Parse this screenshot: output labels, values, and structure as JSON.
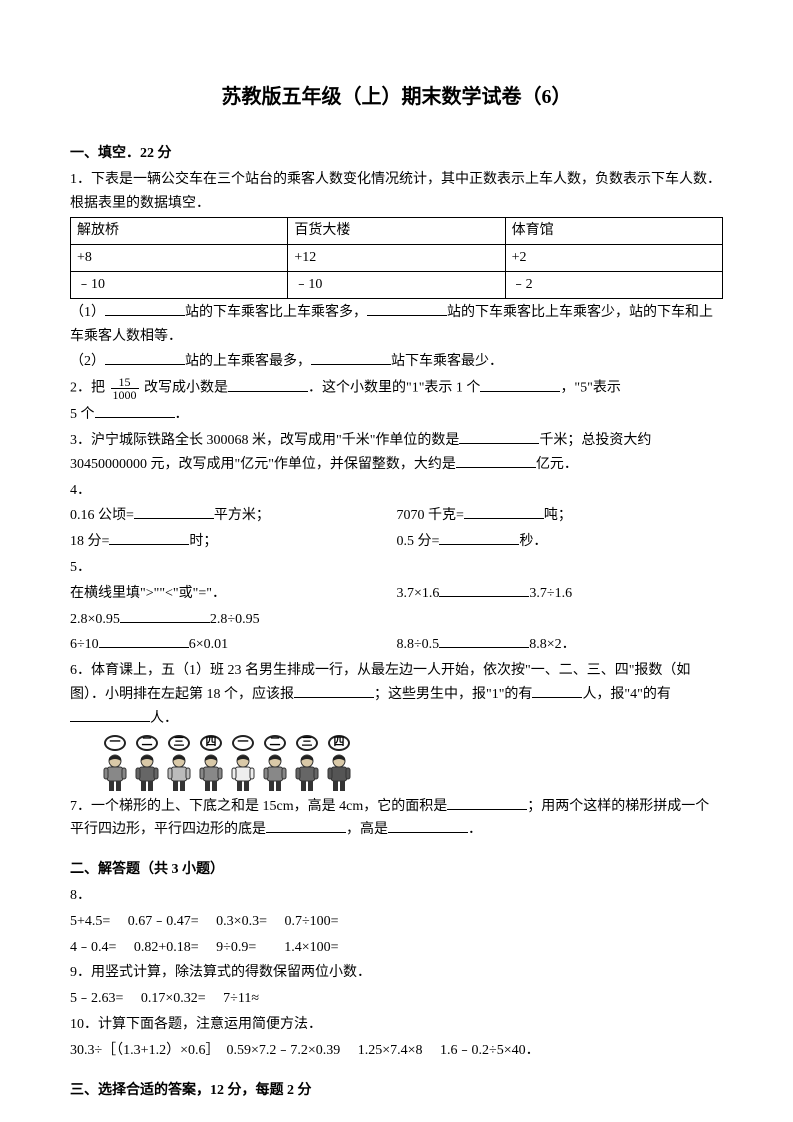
{
  "title": "苏教版五年级（上）期末数学试卷（6）",
  "sec1": {
    "head": "一、填空．22 分",
    "q1": {
      "intro": "1．下表是一辆公交车在三个站台的乘客人数变化情况统计，其中正数表示上车人数，负数表示下车人数．根据表里的数据填空．",
      "table": {
        "r0": {
          "c0": "解放桥",
          "c1": "百货大楼",
          "c2": "体育馆"
        },
        "r1": {
          "c0": "+8",
          "c1": "+12",
          "c2": "+2"
        },
        "r2": {
          "c0": "﹣10",
          "c1": "﹣10",
          "c2": "﹣2"
        }
      },
      "p1a": "（1）",
      "p1b": "站的下车乘客比上车乘客多，",
      "p1c": "站的下车乘客比上车乘客少，",
      "p1d": "站的下车和上车乘客人数相等．",
      "p2a": "（2）",
      "p2b": "站的上车乘客最多，",
      "p2c": "站下车乘客最少．"
    },
    "q2": {
      "a": "2．把",
      "frac_num": "15",
      "frac_den": "1000",
      "b": "改写成小数是",
      "c": "．这个小数里的\"1\"表示 1 个",
      "d": "，\"5\"表示",
      "e": "5 个",
      "f": "．"
    },
    "q3": {
      "a": "3．沪宁城际铁路全长 300068 米，改写成用\"千米\"作单位的数是",
      "b": "千米；总投资大约 30450000000 元，改写成用\"亿元\"作单位，并保留整数，大约是",
      "c": "亿元．"
    },
    "q4": {
      "head": "4．",
      "r1a": "0.16 公顷=",
      "r1b": "平方米；",
      "r1c": "7070 千克=",
      "r1d": "吨；",
      "r2a": "18 分=",
      "r2b": "时；",
      "r2c": "0.5 分=",
      "r2d": "秒．"
    },
    "q5": {
      "head": "5．",
      "intro": "在横线里填\">\"\"<\"或\"=\"．",
      "r1a": "2.8×0.95",
      "r1b": "2.8÷0.95",
      "r1c": "3.7×1.6",
      "r1d": "3.7÷1.6",
      "r2a": "6÷10",
      "r2b": "6×0.01",
      "r2c": "8.8÷0.5",
      "r2d": "8.8×2．"
    },
    "q6": {
      "a": "6．体育课上，五（1）班 23 名男生排成一行，从最左边一人开始，依次按\"一、二、三、四\"报数（如图）．小明排在左起第 18 个，应该报",
      "b": "；这些男生中，报\"1\"的有",
      "c": "人，报\"4\"的有",
      "d": "人．",
      "nums": [
        "一",
        "二",
        "三",
        "四",
        "一",
        "二",
        "三",
        "四"
      ],
      "shirt_colors": [
        "#888888",
        "#666666",
        "#bbbbbb",
        "#888888",
        "#eeeeee",
        "#888888",
        "#666666",
        "#555555"
      ]
    },
    "q7": {
      "a": "7．一个梯形的上、下底之和是 15cm，高是 4cm，它的面积是",
      "b": "；用两个这样的梯形拼成一个平行四边形，平行四边形的底是",
      "c": "，高是",
      "d": "．"
    }
  },
  "sec2": {
    "head": "二、解答题（共 3 小题）",
    "q8": {
      "head": "8．",
      "r1": "5+4.5=　 0.67﹣0.47=　 0.3×0.3=　 0.7÷100=",
      "r2": "4﹣0.4=　 0.82+0.18=　  9÷0.9=　　1.4×100="
    },
    "q9": {
      "a": "9．用竖式计算，除法算式的得数保留两位小数．",
      "b": "5﹣2.63=　  0.17×0.32=　  7÷11≈"
    },
    "q10": {
      "a": "10．计算下面各题，注意运用简便方法．",
      "b": "30.3÷［（1.3+1.2）×0.6］　0.59×7.2﹣7.2×0.39　 1.25×7.4×8　 1.6﹣0.2÷5×40．"
    }
  },
  "sec3": {
    "head": "三、选择合适的答案，12 分，每题 2 分"
  }
}
